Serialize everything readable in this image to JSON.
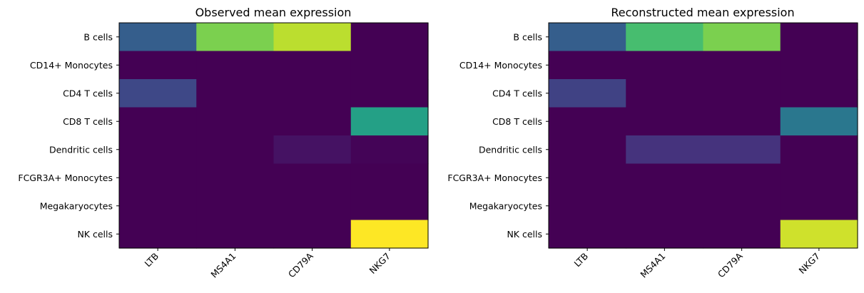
{
  "chart_data": [
    {
      "type": "heatmap",
      "title": "Observed mean expression",
      "xlabel": "",
      "ylabel": "",
      "colormap": "viridis",
      "vmin": 0,
      "vmax": 1,
      "rows": [
        "B cells",
        "CD14+ Monocytes",
        "CD4 T cells",
        "CD8 T cells",
        "Dendritic cells",
        "FCGR3A+ Monocytes",
        "Megakaryocytes",
        "NK cells"
      ],
      "columns": [
        "LTB",
        "MS4A1",
        "CD79A",
        "NKG7"
      ],
      "values": [
        [
          0.3,
          0.8,
          0.9,
          0.0
        ],
        [
          0.0,
          0.0,
          0.0,
          0.0
        ],
        [
          0.22,
          0.0,
          0.0,
          0.0
        ],
        [
          0.0,
          0.0,
          0.0,
          0.57
        ],
        [
          0.0,
          0.0,
          0.05,
          0.01
        ],
        [
          0.0,
          0.0,
          0.0,
          0.0
        ],
        [
          0.0,
          0.0,
          0.0,
          0.0
        ],
        [
          0.0,
          0.0,
          0.0,
          1.0
        ]
      ]
    },
    {
      "type": "heatmap",
      "title": "Reconstructed mean expression",
      "xlabel": "",
      "ylabel": "",
      "colormap": "viridis",
      "vmin": 0,
      "vmax": 1,
      "rows": [
        "B cells",
        "CD14+ Monocytes",
        "CD4 T cells",
        "CD8 T cells",
        "Dendritic cells",
        "FCGR3A+ Monocytes",
        "Megakaryocytes",
        "NK cells"
      ],
      "columns": [
        "LTB",
        "MS4A1",
        "CD79A",
        "NKG7"
      ],
      "values": [
        [
          0.3,
          0.7,
          0.8,
          0.0
        ],
        [
          0.0,
          0.0,
          0.0,
          0.0
        ],
        [
          0.2,
          0.0,
          0.0,
          0.0
        ],
        [
          0.0,
          0.0,
          0.0,
          0.4
        ],
        [
          0.0,
          0.15,
          0.15,
          0.0
        ],
        [
          0.0,
          0.0,
          0.0,
          0.0
        ],
        [
          0.0,
          0.0,
          0.0,
          0.0
        ],
        [
          0.0,
          0.0,
          0.0,
          0.93
        ]
      ]
    }
  ]
}
